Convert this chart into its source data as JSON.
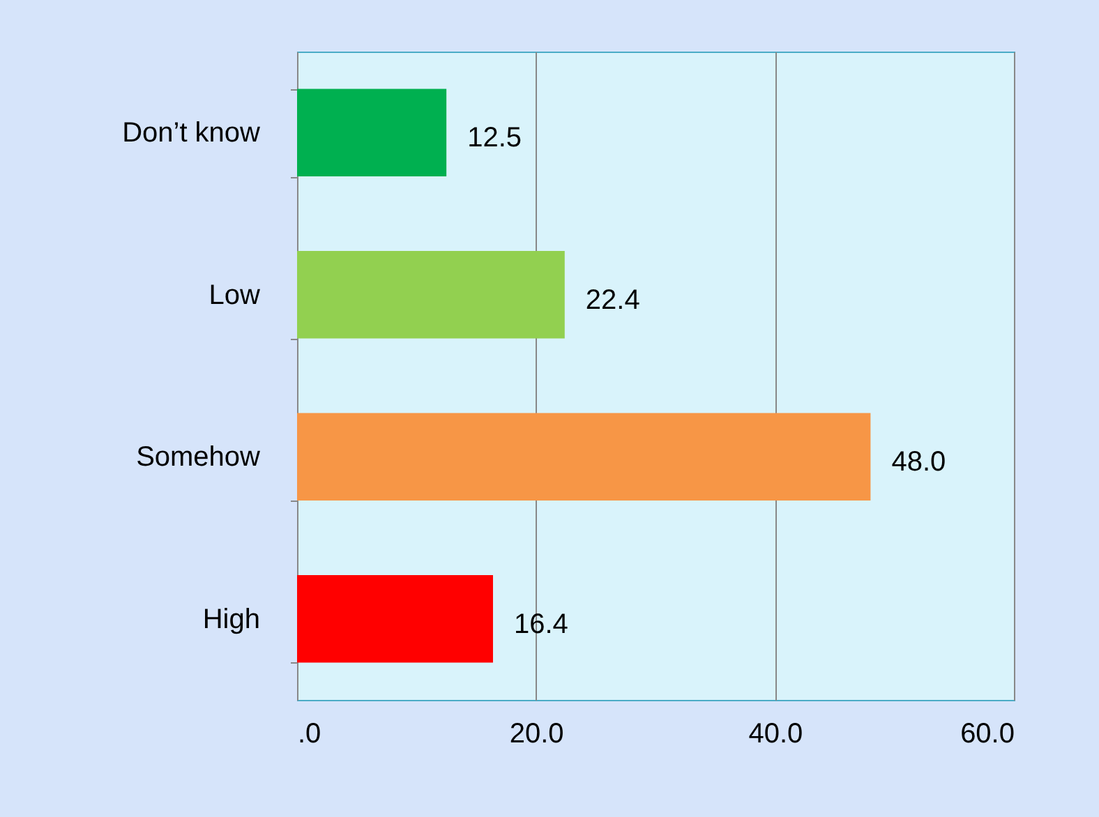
{
  "chart_data": {
    "type": "bar",
    "orientation": "horizontal",
    "categories": [
      "Don’t know",
      "Low",
      "Somehow",
      "High"
    ],
    "values": [
      12.5,
      22.4,
      48.0,
      16.4
    ],
    "value_labels": [
      "12.5",
      "22.4",
      "48.0",
      "16.4"
    ],
    "colors": [
      "#00b050",
      "#92d050",
      "#f79646",
      "#ff0000"
    ],
    "xlim": [
      0,
      60
    ],
    "xticks": [
      {
        "value": 0,
        "label": ".0"
      },
      {
        "value": 20,
        "label": "20.0"
      },
      {
        "value": 40,
        "label": "40.0"
      },
      {
        "value": 60,
        "label": "60.0"
      }
    ],
    "grid": "x"
  }
}
